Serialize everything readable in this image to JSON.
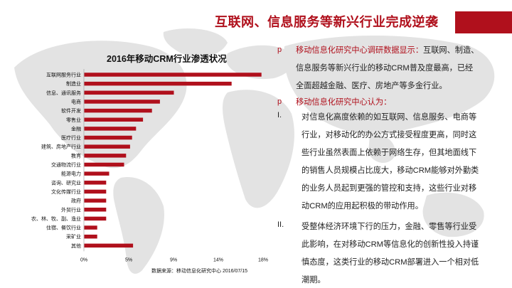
{
  "header": {
    "title": "互联网、信息服务等新兴行业完成逆袭"
  },
  "chart_data": {
    "type": "bar",
    "orientation": "horizontal",
    "title": "2016年移动CRM行业渗透状况",
    "categories": [
      "互联网服务行业",
      "制造业",
      "信息、通讯服务",
      "电商",
      "软件开发",
      "零售业",
      "金融",
      "医疗行业",
      "建筑、房地产行业",
      "教育",
      "交通物流行业",
      "能源电力",
      "咨询、研究业",
      "文化传媒行业",
      "政府",
      "外贸行业",
      "农、林、牧、副、渔业",
      "住宿、餐饮行业",
      "采矿业",
      "其他"
    ],
    "values": [
      17.8,
      14.8,
      9.0,
      7.6,
      6.8,
      5.9,
      5.2,
      4.8,
      4.6,
      4.2,
      4.0,
      2.5,
      2.2,
      2.2,
      2.2,
      2.2,
      2.2,
      1.3,
      1.3,
      4.9
    ],
    "xticks": [
      "0%",
      "5%",
      "9%",
      "14%",
      "18%"
    ],
    "xlim": [
      0,
      18
    ],
    "bar_color": "#b0101c",
    "source": "数据来源：移动信息化研究中心 2016/07/15"
  },
  "text": {
    "bullet_marker": "p",
    "p1_lines": [
      "移动信息化研究中心调研数据显示：互联网、制造、",
      "信息服务等新兴行业的移动CRM普及度最高，已经",
      "全面超越金融、医疗、房地产等多金行业。"
    ],
    "p1_highlight": "移动信息化研究中心调研数据显示：",
    "p2_label": "移动信息化研究中心认为：",
    "roman1": "I.",
    "i_lines": [
      "对信息化高度依赖的如互联网、信息服务、电商等",
      "行业，对移动化的办公方式接受程度更高，同时这",
      "些行业虽然表面上依赖于网络生存，但其地面线下",
      "的销售人员规模占比庞大，移动CRM能够对外勤类",
      "的业务人员起到更强的管控和支持，这些行业对移",
      "动CRM的应用起积极的带动作用。"
    ],
    "roman2": "II.",
    "ii_lines": [
      "受整体经济环境下行的压力，金融、零售等行业受",
      "此影响，在对移动CRM等信息化的创新性投入持谨",
      "慎态度，这类行业的移动CRM部署进入一个相对低",
      "潮期。"
    ]
  }
}
